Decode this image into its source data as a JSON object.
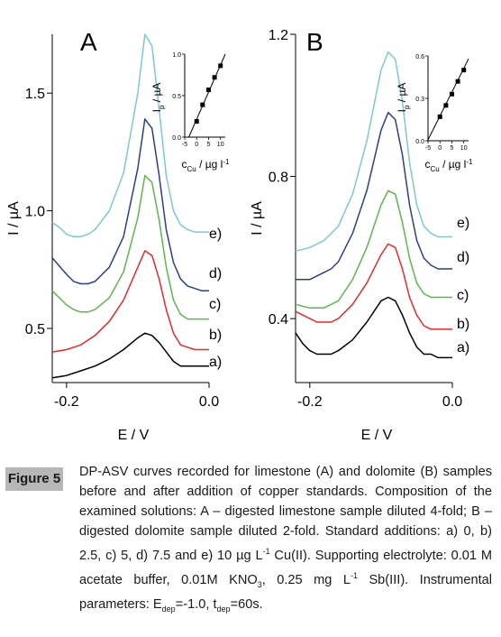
{
  "figure": {
    "label": "Figure 5",
    "caption": {
      "main": "DP-ASV curves recorded for limestone (A) and dolomite (B) samples before and after addition of copper standards. Composition of the examined solutions: A – digested limestone sample diluted 4-fold; B – digested dolomite sample diluted 2-fold. Standard additions: a) 0, b) 2.5, c) 5, d) 7.5 and e) 10 µg L",
      "sup1": "-1",
      "after_sup1": " Cu(II). Supporting electrolyte: 0.01 M acetate buffer, 0.01M KNO",
      "sub1": "3",
      "after_sub1": ", 0.25 mg L",
      "sup2": "-1",
      "after_sup2": " Sb(III). Instrumental parameters: E",
      "sub2": "dep",
      "after_sub2": "=-1.0, t",
      "sub3": "dep",
      "after_sub3": "=60s."
    }
  },
  "colors": {
    "a": "#000000",
    "b": "#e8292c",
    "c": "#5cb84a",
    "d": "#2b3d8f",
    "e": "#7cc8d8"
  },
  "chart_data": [
    {
      "panel": "A",
      "type": "line",
      "title": "A",
      "xlabel": "E / V",
      "ylabel": "I / µA",
      "xlim": [
        -0.22,
        0.0
      ],
      "ylim": [
        0.27,
        1.75
      ],
      "xticks": [
        -0.2,
        0.0
      ],
      "xtick_labels": [
        "-0.2",
        "0.0"
      ],
      "yticks": [
        0.5,
        1.0,
        1.5
      ],
      "ytick_labels": [
        "0.5",
        "1.0",
        "1.5"
      ],
      "grid": false,
      "series": [
        {
          "name": "a)",
          "x": [
            -0.22,
            -0.2,
            -0.18,
            -0.16,
            -0.14,
            -0.12,
            -0.1,
            -0.09,
            -0.08,
            -0.07,
            -0.06,
            -0.05,
            -0.04,
            -0.03,
            -0.02,
            -0.01,
            0.0
          ],
          "y": [
            0.29,
            0.3,
            0.32,
            0.34,
            0.37,
            0.41,
            0.46,
            0.48,
            0.47,
            0.44,
            0.4,
            0.36,
            0.34,
            0.34,
            0.34,
            0.34,
            0.34
          ]
        },
        {
          "name": "b)",
          "x": [
            -0.22,
            -0.2,
            -0.18,
            -0.16,
            -0.14,
            -0.12,
            -0.1,
            -0.09,
            -0.08,
            -0.07,
            -0.06,
            -0.05,
            -0.04,
            -0.03,
            -0.02,
            -0.01,
            0.0
          ],
          "y": [
            0.4,
            0.41,
            0.43,
            0.47,
            0.53,
            0.62,
            0.76,
            0.83,
            0.81,
            0.71,
            0.58,
            0.48,
            0.43,
            0.42,
            0.41,
            0.41,
            0.41
          ]
        },
        {
          "name": "c)",
          "x": [
            -0.22,
            -0.2,
            -0.19,
            -0.18,
            -0.17,
            -0.16,
            -0.14,
            -0.12,
            -0.1,
            -0.09,
            -0.08,
            -0.07,
            -0.06,
            -0.05,
            -0.04,
            -0.03,
            -0.02,
            -0.01,
            0.0
          ],
          "y": [
            0.66,
            0.6,
            0.58,
            0.57,
            0.57,
            0.58,
            0.63,
            0.74,
            0.97,
            1.15,
            1.12,
            0.96,
            0.76,
            0.62,
            0.56,
            0.54,
            0.54,
            0.54,
            0.54
          ]
        },
        {
          "name": "d)",
          "x": [
            -0.22,
            -0.2,
            -0.19,
            -0.18,
            -0.17,
            -0.16,
            -0.14,
            -0.12,
            -0.1,
            -0.09,
            -0.08,
            -0.07,
            -0.06,
            -0.05,
            -0.04,
            -0.03,
            -0.02,
            -0.01,
            0.0
          ],
          "y": [
            0.8,
            0.73,
            0.7,
            0.69,
            0.69,
            0.7,
            0.76,
            0.89,
            1.18,
            1.39,
            1.35,
            1.15,
            0.92,
            0.78,
            0.71,
            0.68,
            0.67,
            0.66,
            0.66
          ]
        },
        {
          "name": "e)",
          "x": [
            -0.22,
            -0.21,
            -0.2,
            -0.19,
            -0.18,
            -0.17,
            -0.16,
            -0.14,
            -0.12,
            -0.1,
            -0.09,
            -0.08,
            -0.07,
            -0.06,
            -0.05,
            -0.04,
            -0.03,
            -0.02,
            -0.01,
            0.0
          ],
          "y": [
            0.95,
            0.93,
            0.9,
            0.89,
            0.89,
            0.9,
            0.92,
            1.0,
            1.16,
            1.5,
            1.75,
            1.7,
            1.43,
            1.15,
            1.0,
            0.94,
            0.92,
            0.91,
            0.91,
            0.91
          ]
        }
      ],
      "annotations": [
        "a)",
        "b)",
        "c)",
        "d)",
        "e)"
      ],
      "inset": {
        "type": "scatter",
        "xlabel_main": "c",
        "xlabel_sub": "Cu",
        "xlabel_rest": " / µg l",
        "xlabel_sup": "-1",
        "ylabel_main": "I",
        "ylabel_sub": "p",
        "ylabel_rest": " / µA",
        "xlim": [
          -5,
          12
        ],
        "ylim": [
          0.0,
          1.0
        ],
        "xtick_labels": [
          "-5",
          "0",
          "5",
          "10"
        ],
        "xticks": [
          -5,
          0,
          5,
          10
        ],
        "ytick_labels": [
          "0.0",
          "0.5",
          "1.0"
        ],
        "yticks": [
          0.0,
          0.5,
          1.0
        ],
        "points": {
          "x": [
            0,
            2.5,
            5,
            7.5,
            10
          ],
          "y": [
            0.19,
            0.39,
            0.57,
            0.72,
            0.86
          ]
        },
        "fit": {
          "x": [
            -3.3,
            12
          ],
          "y": [
            0.0,
            1.0
          ]
        }
      }
    },
    {
      "panel": "B",
      "type": "line",
      "title": "B",
      "xlabel": "E / V",
      "ylabel": "I / µA",
      "xlim": [
        -0.22,
        0.0
      ],
      "ylim": [
        0.22,
        1.2
      ],
      "xticks": [
        -0.2,
        0.0
      ],
      "xtick_labels": [
        "-0.2",
        "0.0"
      ],
      "yticks": [
        0.4,
        0.8,
        1.2
      ],
      "ytick_labels": [
        "0.4",
        "0.8",
        "1.2"
      ],
      "grid": false,
      "series": [
        {
          "name": "a)",
          "x": [
            -0.22,
            -0.21,
            -0.2,
            -0.19,
            -0.18,
            -0.17,
            -0.16,
            -0.14,
            -0.12,
            -0.1,
            -0.09,
            -0.08,
            -0.07,
            -0.06,
            -0.05,
            -0.04,
            -0.03,
            -0.02,
            -0.01,
            0.0
          ],
          "y": [
            0.36,
            0.33,
            0.31,
            0.3,
            0.3,
            0.3,
            0.31,
            0.34,
            0.39,
            0.45,
            0.46,
            0.45,
            0.41,
            0.36,
            0.32,
            0.3,
            0.3,
            0.29,
            0.29,
            0.29
          ]
        },
        {
          "name": "b)",
          "x": [
            -0.22,
            -0.2,
            -0.19,
            -0.18,
            -0.17,
            -0.16,
            -0.14,
            -0.12,
            -0.1,
            -0.09,
            -0.08,
            -0.07,
            -0.06,
            -0.05,
            -0.04,
            -0.03,
            -0.02,
            -0.01,
            0.0
          ],
          "y": [
            0.42,
            0.4,
            0.39,
            0.39,
            0.39,
            0.4,
            0.44,
            0.5,
            0.58,
            0.61,
            0.6,
            0.54,
            0.46,
            0.41,
            0.38,
            0.37,
            0.37,
            0.37,
            0.37
          ]
        },
        {
          "name": "c)",
          "x": [
            -0.22,
            -0.2,
            -0.19,
            -0.18,
            -0.17,
            -0.16,
            -0.14,
            -0.12,
            -0.1,
            -0.09,
            -0.08,
            -0.07,
            -0.06,
            -0.05,
            -0.04,
            -0.03,
            -0.02,
            -0.01,
            0.0
          ],
          "y": [
            0.44,
            0.43,
            0.43,
            0.43,
            0.44,
            0.45,
            0.51,
            0.6,
            0.72,
            0.76,
            0.75,
            0.67,
            0.57,
            0.5,
            0.47,
            0.46,
            0.46,
            0.46,
            0.46
          ]
        },
        {
          "name": "d)",
          "x": [
            -0.22,
            -0.2,
            -0.19,
            -0.18,
            -0.17,
            -0.16,
            -0.14,
            -0.12,
            -0.1,
            -0.09,
            -0.08,
            -0.07,
            -0.06,
            -0.05,
            -0.04,
            -0.03,
            -0.02,
            -0.01,
            0.0
          ],
          "y": [
            0.51,
            0.51,
            0.52,
            0.53,
            0.54,
            0.56,
            0.64,
            0.76,
            0.93,
            0.98,
            0.96,
            0.86,
            0.72,
            0.62,
            0.57,
            0.55,
            0.54,
            0.54,
            0.54
          ]
        },
        {
          "name": "e)",
          "x": [
            -0.22,
            -0.2,
            -0.19,
            -0.18,
            -0.17,
            -0.16,
            -0.14,
            -0.12,
            -0.1,
            -0.09,
            -0.08,
            -0.07,
            -0.06,
            -0.05,
            -0.04,
            -0.03,
            -0.02,
            -0.01,
            0.0
          ],
          "y": [
            0.59,
            0.6,
            0.61,
            0.62,
            0.64,
            0.66,
            0.75,
            0.9,
            1.1,
            1.15,
            1.13,
            1.01,
            0.84,
            0.72,
            0.66,
            0.64,
            0.63,
            0.63,
            0.63
          ]
        }
      ],
      "annotations": [
        "a)",
        "b)",
        "c)",
        "d)",
        "e)"
      ],
      "inset": {
        "type": "scatter",
        "xlabel_main": "c",
        "xlabel_sub": "Cu",
        "xlabel_rest": " / µg l",
        "xlabel_sup": "-1",
        "ylabel_main": "I",
        "ylabel_sub": "p",
        "ylabel_rest": " / µA",
        "xlim": [
          -5,
          12
        ],
        "ylim": [
          0.0,
          0.6
        ],
        "xtick_labels": [
          "-5",
          "0",
          "5",
          "10"
        ],
        "xticks": [
          -5,
          0,
          5,
          10
        ],
        "ytick_labels": [
          "0.0",
          "0.3",
          "0.6"
        ],
        "yticks": [
          0.0,
          0.3,
          0.6
        ],
        "points": {
          "x": [
            0,
            2.5,
            5,
            7.5,
            10
          ],
          "y": [
            0.17,
            0.25,
            0.33,
            0.42,
            0.5
          ]
        },
        "fit": {
          "x": [
            -5.2,
            12
          ],
          "y": [
            0.0,
            0.58
          ]
        }
      }
    }
  ]
}
